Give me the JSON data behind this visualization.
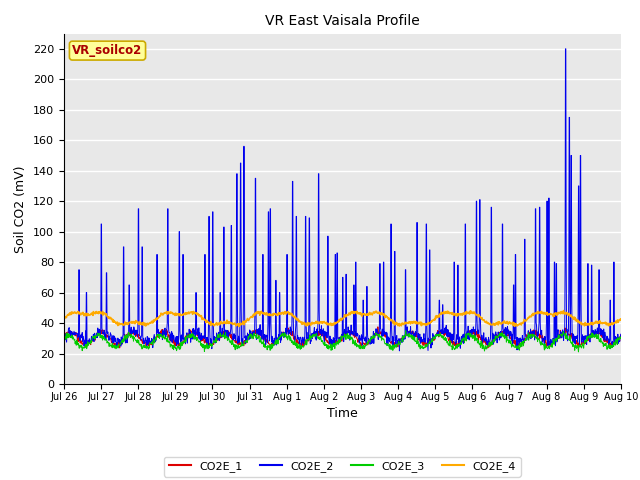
{
  "title": "VR East Vaisala Profile",
  "xlabel": "Time",
  "ylabel": "Soil CO2 (mV)",
  "ylim": [
    0,
    230
  ],
  "yticks": [
    0,
    20,
    40,
    60,
    80,
    100,
    120,
    140,
    160,
    180,
    200,
    220
  ],
  "fig_bg_color": "#ffffff",
  "plot_bg_color": "#e8e8e8",
  "series_colors": {
    "CO2E_1": "#dd0000",
    "CO2E_2": "#0000ee",
    "CO2E_3": "#00cc00",
    "CO2E_4": "#ffaa00"
  },
  "grid_color": "#ffffff",
  "watermark_text": "VR_soilco2",
  "watermark_bg": "#ffff99",
  "watermark_fg": "#aa0000",
  "watermark_border": "#ccaa00",
  "tick_labels": [
    "Jul 26",
    "Jul 27",
    "Jul 28",
    "Jul 29",
    "Jul 30",
    "Jul 31",
    "Aug 1",
    "Aug 2",
    "Aug 3",
    "Aug 4",
    "Aug 5",
    "Aug 6",
    "Aug 7",
    "Aug 8",
    "Aug 9",
    "Aug 10"
  ],
  "legend_labels": [
    "CO2E_1",
    "CO2E_2",
    "CO2E_3",
    "CO2E_4"
  ]
}
